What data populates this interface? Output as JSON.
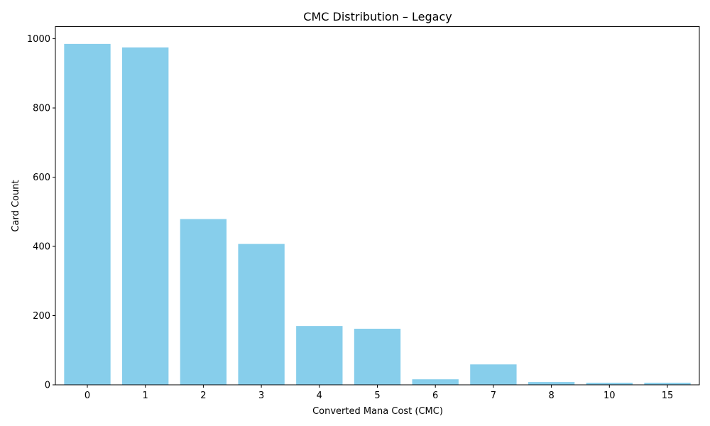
{
  "chart_data": {
    "type": "bar",
    "title": "CMC Distribution – Legacy",
    "xlabel": "Converted Mana Cost (CMC)",
    "ylabel": "Card Count",
    "categories": [
      "0",
      "1",
      "2",
      "3",
      "4",
      "5",
      "6",
      "7",
      "8",
      "10",
      "15"
    ],
    "values": [
      985,
      975,
      479,
      407,
      170,
      162,
      16,
      59,
      8,
      6,
      6
    ],
    "ylim": [
      0,
      1035
    ],
    "yticks": [
      0,
      200,
      400,
      600,
      800,
      1000
    ],
    "bar_color": "#87ceeb",
    "grid": false,
    "legend": "none"
  }
}
